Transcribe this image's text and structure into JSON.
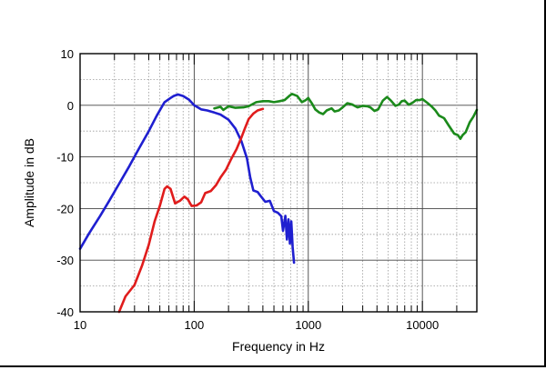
{
  "chart_data": {
    "type": "line",
    "xlabel": "Frequency in Hz",
    "ylabel": "Amplitude in dB",
    "xscale": "log",
    "xlim": [
      10,
      30000
    ],
    "ylim": [
      -40,
      10
    ],
    "grid": true,
    "x_ticks": [
      {
        "value": 10,
        "label": "10"
      },
      {
        "value": 100,
        "label": "100"
      },
      {
        "value": 1000,
        "label": "1000"
      },
      {
        "value": 10000,
        "label": "10000"
      }
    ],
    "y_ticks": [
      {
        "value": 10,
        "label": "10"
      },
      {
        "value": 0,
        "label": "0"
      },
      {
        "value": -10,
        "label": "-10"
      },
      {
        "value": -20,
        "label": "-20"
      },
      {
        "value": -30,
        "label": "-30"
      },
      {
        "value": -40,
        "label": "-40"
      }
    ],
    "series": [
      {
        "color": "#1f1fd0",
        "points": [
          [
            10,
            -27.8
          ],
          [
            12,
            -24.8
          ],
          [
            15,
            -21.4
          ],
          [
            18,
            -18.5
          ],
          [
            22,
            -15.2
          ],
          [
            27,
            -11.8
          ],
          [
            33,
            -8.3
          ],
          [
            40,
            -5.0
          ],
          [
            47,
            -2.0
          ],
          [
            55,
            0.6
          ],
          [
            62,
            1.4
          ],
          [
            66,
            1.8
          ],
          [
            72,
            2.1
          ],
          [
            80,
            1.8
          ],
          [
            90,
            1.1
          ],
          [
            100,
            0.0
          ],
          [
            115,
            -0.8
          ],
          [
            130,
            -1.0
          ],
          [
            150,
            -1.4
          ],
          [
            170,
            -1.8
          ],
          [
            200,
            -2.8
          ],
          [
            230,
            -4.5
          ],
          [
            260,
            -7.0
          ],
          [
            290,
            -10.3
          ],
          [
            310,
            -14.0
          ],
          [
            330,
            -16.5
          ],
          [
            360,
            -16.8
          ],
          [
            380,
            -17.5
          ],
          [
            420,
            -18.7
          ],
          [
            460,
            -18.5
          ],
          [
            500,
            -20.5
          ],
          [
            540,
            -20.8
          ],
          [
            580,
            -21.5
          ],
          [
            600,
            -24.3
          ],
          [
            630,
            -21.4
          ],
          [
            650,
            -26.0
          ],
          [
            670,
            -22.1
          ],
          [
            690,
            -26.8
          ],
          [
            710,
            -22.5
          ],
          [
            730,
            -27.5
          ],
          [
            750,
            -30.5
          ]
        ]
      },
      {
        "color": "#e01c1c",
        "points": [
          [
            22,
            -40.0
          ],
          [
            25,
            -37.0
          ],
          [
            30,
            -34.8
          ],
          [
            35,
            -31.0
          ],
          [
            40,
            -27.0
          ],
          [
            45,
            -22.5
          ],
          [
            50,
            -19.5
          ],
          [
            55,
            -16.2
          ],
          [
            58,
            -15.7
          ],
          [
            62,
            -16.2
          ],
          [
            68,
            -19.0
          ],
          [
            75,
            -18.5
          ],
          [
            82,
            -17.7
          ],
          [
            88,
            -18.2
          ],
          [
            95,
            -19.5
          ],
          [
            105,
            -19.4
          ],
          [
            115,
            -18.8
          ],
          [
            125,
            -17.0
          ],
          [
            140,
            -16.6
          ],
          [
            155,
            -15.5
          ],
          [
            170,
            -14.0
          ],
          [
            190,
            -12.5
          ],
          [
            210,
            -10.5
          ],
          [
            235,
            -8.5
          ],
          [
            260,
            -6.2
          ],
          [
            280,
            -4.3
          ],
          [
            300,
            -2.7
          ],
          [
            330,
            -1.6
          ],
          [
            360,
            -1.0
          ],
          [
            400,
            -0.7
          ]
        ]
      },
      {
        "color": "#1b8a1b",
        "points": [
          [
            150,
            -0.6
          ],
          [
            170,
            -0.3
          ],
          [
            180,
            -0.9
          ],
          [
            200,
            -0.2
          ],
          [
            230,
            -0.5
          ],
          [
            270,
            -0.4
          ],
          [
            300,
            -0.2
          ],
          [
            350,
            0.6
          ],
          [
            400,
            0.8
          ],
          [
            450,
            0.8
          ],
          [
            500,
            0.6
          ],
          [
            560,
            0.8
          ],
          [
            620,
            1.0
          ],
          [
            680,
            1.8
          ],
          [
            720,
            2.2
          ],
          [
            800,
            1.8
          ],
          [
            880,
            0.6
          ],
          [
            950,
            1.0
          ],
          [
            1000,
            1.4
          ],
          [
            1080,
            0.3
          ],
          [
            1150,
            -0.8
          ],
          [
            1250,
            -1.4
          ],
          [
            1350,
            -1.7
          ],
          [
            1450,
            -1.0
          ],
          [
            1600,
            -0.6
          ],
          [
            1700,
            -1.2
          ],
          [
            1850,
            -1.0
          ],
          [
            2000,
            -0.4
          ],
          [
            2200,
            0.4
          ],
          [
            2400,
            0.2
          ],
          [
            2700,
            -0.4
          ],
          [
            3000,
            -0.1
          ],
          [
            3300,
            -0.2
          ],
          [
            3500,
            -0.4
          ],
          [
            3800,
            -1.1
          ],
          [
            4100,
            -0.8
          ],
          [
            4500,
            0.9
          ],
          [
            4900,
            1.6
          ],
          [
            5300,
            0.9
          ],
          [
            5800,
            -0.1
          ],
          [
            6200,
            0.1
          ],
          [
            6600,
            0.8
          ],
          [
            7000,
            0.9
          ],
          [
            7600,
            0.1
          ],
          [
            8200,
            0.5
          ],
          [
            8800,
            1.0
          ],
          [
            9500,
            1.0
          ],
          [
            10000,
            1.2
          ],
          [
            11000,
            0.5
          ],
          [
            12000,
            -0.2
          ],
          [
            13000,
            -1.0
          ],
          [
            14000,
            -2.0
          ],
          [
            15500,
            -2.5
          ],
          [
            17000,
            -3.9
          ],
          [
            19000,
            -5.5
          ],
          [
            20500,
            -5.8
          ],
          [
            21500,
            -6.5
          ],
          [
            22500,
            -5.8
          ],
          [
            24000,
            -5.2
          ],
          [
            26000,
            -3.3
          ],
          [
            28000,
            -2.2
          ],
          [
            30000,
            -0.9
          ]
        ]
      }
    ]
  }
}
